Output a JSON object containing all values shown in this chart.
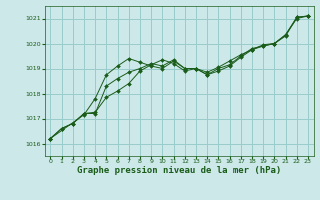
{
  "bg_color": "#cce8e8",
  "grid_color": "#99cccc",
  "line_color": "#1a5c1a",
  "marker_color": "#1a5c1a",
  "xlabel": "Graphe pression niveau de la mer (hPa)",
  "xlabel_fontsize": 6.5,
  "ylim": [
    1015.5,
    1021.5
  ],
  "xlim": [
    -0.5,
    23.5
  ],
  "yticks": [
    1016,
    1017,
    1018,
    1019,
    1020,
    1021
  ],
  "xticks": [
    0,
    1,
    2,
    3,
    4,
    5,
    6,
    7,
    8,
    9,
    10,
    11,
    12,
    13,
    14,
    15,
    16,
    17,
    18,
    19,
    20,
    21,
    22,
    23
  ],
  "series1": {
    "x": [
      0,
      1,
      2,
      3,
      4,
      5,
      6,
      7,
      8,
      9,
      10,
      11,
      12,
      13,
      14,
      15,
      16,
      17,
      18,
      19,
      20,
      21,
      22,
      23
    ],
    "y": [
      1016.2,
      1016.6,
      1016.8,
      1017.2,
      1017.2,
      1018.3,
      1018.6,
      1018.85,
      1019.0,
      1019.2,
      1019.1,
      1019.35,
      1019.0,
      1019.0,
      1018.75,
      1019.0,
      1019.15,
      1019.5,
      1019.8,
      1019.9,
      1020.0,
      1020.3,
      1021.05,
      1021.1
    ]
  },
  "series2": {
    "x": [
      0,
      1,
      2,
      3,
      4,
      5,
      6,
      7,
      8,
      9,
      10,
      11,
      12,
      13,
      14,
      15,
      16,
      17,
      18,
      19,
      20,
      21,
      22,
      23
    ],
    "y": [
      1016.2,
      1016.6,
      1016.8,
      1017.2,
      1017.25,
      1017.85,
      1018.1,
      1018.4,
      1018.9,
      1019.15,
      1019.35,
      1019.2,
      1018.9,
      1019.0,
      1018.85,
      1019.05,
      1019.3,
      1019.55,
      1019.75,
      1019.95,
      1020.0,
      1020.35,
      1021.0,
      1021.1
    ]
  },
  "series3": {
    "x": [
      0,
      3,
      4,
      5,
      6,
      7,
      8,
      9,
      10,
      11,
      12,
      13,
      14,
      15,
      16,
      17,
      18,
      19,
      20,
      21,
      22,
      23
    ],
    "y": [
      1016.2,
      1017.15,
      1017.8,
      1018.75,
      1019.1,
      1019.4,
      1019.25,
      1019.1,
      1019.0,
      1019.3,
      1019.0,
      1019.0,
      1018.75,
      1018.9,
      1019.1,
      1019.45,
      1019.75,
      1019.9,
      1020.0,
      1020.35,
      1021.05,
      1021.1
    ]
  }
}
